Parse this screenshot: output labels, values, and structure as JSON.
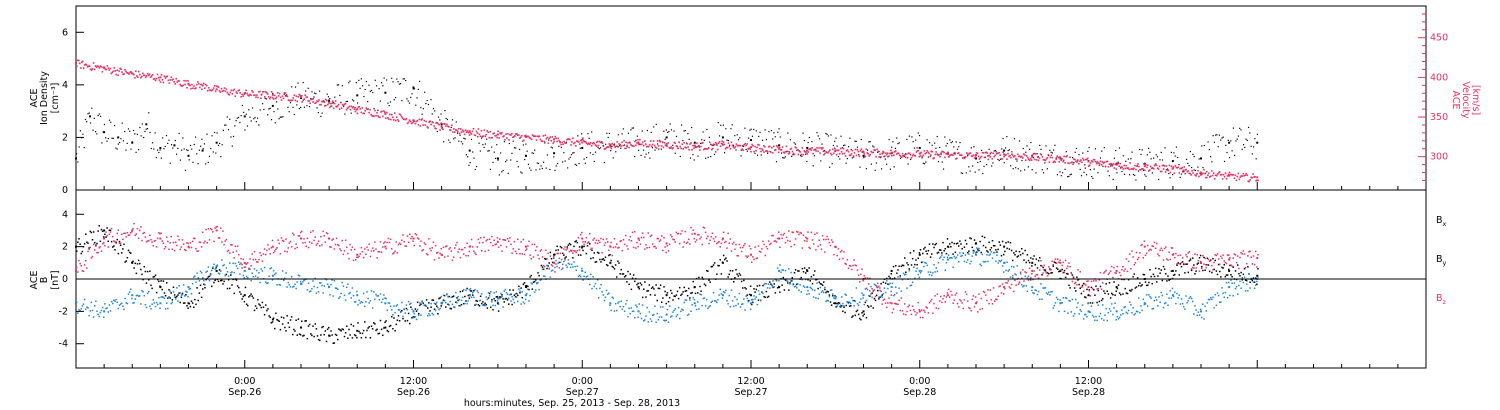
{
  "colors": {
    "axis": "#000000",
    "density": "#000000",
    "velocity": "#e8315f",
    "bx": "#000000",
    "by": "#1f86db",
    "bz": "#e8315f"
  },
  "chart_data": [
    {
      "type": "scatter",
      "panel": "top",
      "ylabel_lines": [
        "ACE",
        "Ion Density",
        "[cm⁻³]"
      ],
      "ylim": [
        0,
        7
      ],
      "yticks": [
        0,
        2,
        4,
        6
      ],
      "right_axis": {
        "ylabel_lines": [
          "ACE",
          "Velocity",
          "[km/s]"
        ],
        "ylim": [
          258,
          490
        ],
        "yticks": [
          300,
          350,
          400,
          450
        ]
      },
      "series": [
        {
          "name": "Ion Density",
          "axis": "left",
          "color": "#000000",
          "x_hours": [
            0,
            1,
            2,
            3,
            4,
            5,
            6,
            7,
            8,
            9,
            10,
            12,
            14,
            16,
            18,
            20,
            22,
            24,
            26,
            28,
            30,
            32,
            34,
            36,
            38,
            40,
            42,
            44,
            46,
            48,
            50,
            52,
            54,
            56,
            58,
            60,
            62,
            64,
            66,
            68,
            70,
            72,
            74,
            76,
            78,
            80,
            82,
            84
          ],
          "values": [
            1.2,
            2.8,
            2.2,
            2.0,
            1.8,
            2.5,
            1.6,
            1.7,
            1.3,
            1.5,
            1.8,
            2.8,
            3.2,
            3.5,
            3.4,
            3.6,
            3.7,
            3.9,
            2.5,
            1.5,
            1.2,
            1.3,
            1.4,
            1.6,
            1.7,
            1.8,
            2.0,
            1.8,
            2.0,
            1.9,
            1.7,
            1.6,
            1.5,
            1.3,
            1.4,
            1.6,
            1.4,
            1.2,
            1.5,
            1.3,
            1.2,
            1.1,
            1.0,
            1.0,
            1.1,
            1.2,
            1.8,
            1.8
          ]
        },
        {
          "name": "Velocity",
          "axis": "right",
          "color": "#e8315f",
          "x_hours": [
            0,
            2,
            4,
            6,
            8,
            9,
            10,
            12,
            14,
            16,
            18,
            20,
            22,
            24,
            26,
            28,
            30,
            32,
            34,
            36,
            38,
            40,
            42,
            44,
            46,
            48,
            50,
            52,
            54,
            56,
            58,
            60,
            62,
            64,
            66,
            68,
            70,
            72,
            74,
            76,
            78,
            80,
            82,
            84
          ],
          "values": [
            418,
            412,
            405,
            400,
            392,
            390,
            385,
            380,
            378,
            375,
            368,
            360,
            354,
            346,
            338,
            332,
            328,
            325,
            322,
            318,
            315,
            318,
            316,
            314,
            315,
            312,
            310,
            308,
            307,
            306,
            305,
            304,
            303,
            302,
            303,
            300,
            298,
            294,
            290,
            288,
            285,
            280,
            276,
            274
          ]
        }
      ]
    },
    {
      "type": "scatter",
      "panel": "bottom",
      "ylabel_lines": [
        "ACE",
        "B",
        "[nT]"
      ],
      "ylim": [
        -5.5,
        5.5
      ],
      "yticks": [
        -4,
        -2,
        0,
        2,
        4
      ],
      "series": [
        {
          "name": "Bx",
          "color": "#000000",
          "x_hours": [
            0,
            2,
            4,
            6,
            8,
            10,
            12,
            14,
            16,
            18,
            20,
            22,
            24,
            26,
            28,
            30,
            32,
            34,
            36,
            38,
            40,
            42,
            44,
            46,
            48,
            50,
            52,
            54,
            56,
            58,
            60,
            62,
            64,
            66,
            68,
            70,
            72,
            74,
            76,
            78,
            80,
            82,
            84
          ],
          "values": [
            2.0,
            3.0,
            1.0,
            -0.5,
            -1.5,
            0.5,
            -1.0,
            -2.5,
            -3.0,
            -3.5,
            -3.2,
            -3.0,
            -2.0,
            -1.5,
            -1.0,
            -1.5,
            -0.5,
            1.5,
            2.0,
            1.0,
            -0.5,
            -1.0,
            -0.5,
            1.0,
            -1.0,
            -0.5,
            0.5,
            -1.5,
            -2.0,
            0.5,
            1.5,
            2.0,
            2.2,
            2.0,
            1.0,
            0.5,
            -1.0,
            -0.5,
            0.0,
            0.5,
            1.0,
            0.5,
            0.2
          ]
        },
        {
          "name": "By",
          "color": "#1f86db",
          "x_hours": [
            0,
            2,
            4,
            6,
            8,
            10,
            12,
            14,
            16,
            18,
            20,
            22,
            24,
            26,
            28,
            30,
            32,
            34,
            36,
            38,
            40,
            42,
            44,
            46,
            48,
            50,
            52,
            54,
            56,
            58,
            60,
            62,
            64,
            66,
            68,
            70,
            72,
            74,
            76,
            78,
            80,
            82,
            84
          ],
          "values": [
            -1.5,
            -2.0,
            -1.0,
            -1.5,
            -0.5,
            0.8,
            0.5,
            0.2,
            -0.3,
            -0.5,
            -1.0,
            -1.5,
            -2.0,
            -1.5,
            -1.0,
            -1.2,
            -1.0,
            1.0,
            0.5,
            -1.5,
            -2.0,
            -2.2,
            -1.5,
            -1.0,
            -1.5,
            0.5,
            -0.5,
            -1.2,
            -1.0,
            -0.5,
            0.5,
            1.2,
            1.5,
            1.0,
            -0.5,
            -1.5,
            -2.0,
            -2.0,
            -1.5,
            -1.0,
            -2.0,
            -0.5,
            0.0
          ]
        },
        {
          "name": "Bz",
          "color": "#e8315f",
          "x_hours": [
            0,
            2,
            4,
            6,
            8,
            10,
            12,
            14,
            16,
            18,
            20,
            22,
            24,
            26,
            28,
            30,
            32,
            34,
            36,
            38,
            40,
            42,
            44,
            46,
            48,
            50,
            52,
            54,
            56,
            58,
            60,
            62,
            64,
            66,
            68,
            70,
            72,
            74,
            76,
            78,
            80,
            82,
            84
          ],
          "values": [
            0.5,
            2.5,
            3.0,
            2.5,
            2.0,
            3.0,
            1.0,
            2.0,
            2.5,
            2.5,
            1.5,
            2.0,
            2.5,
            1.5,
            2.0,
            2.3,
            2.0,
            1.0,
            2.5,
            2.0,
            2.5,
            2.2,
            2.8,
            2.5,
            1.5,
            2.5,
            2.5,
            2.0,
            0.0,
            -1.5,
            -2.0,
            -1.0,
            -1.5,
            -0.5,
            0.5,
            1.0,
            -0.5,
            0.5,
            2.0,
            1.5,
            1.0,
            1.2,
            1.3
          ]
        }
      ]
    }
  ],
  "xaxis": {
    "range_hours": [
      0,
      96
    ],
    "major_ticks": [
      {
        "hour": 12,
        "time": "0:00",
        "date": "Sep.26"
      },
      {
        "hour": 24,
        "time": "12:00",
        "date": "Sep.26"
      },
      {
        "hour": 36,
        "time": "0:00",
        "date": "Sep.27"
      },
      {
        "hour": 48,
        "time": "12:00",
        "date": "Sep.27"
      },
      {
        "hour": 60,
        "time": "0:00",
        "date": "Sep.28"
      },
      {
        "hour": 72,
        "time": "12:00",
        "date": "Sep.28"
      }
    ],
    "xlabel": "hours:minutes, Sep. 25, 2013 - Sep. 28, 2013"
  },
  "legend": {
    "bx": "B",
    "bx_sub": "x",
    "by": "B",
    "by_sub": "y",
    "bz": "B",
    "bz_sub": "z"
  }
}
